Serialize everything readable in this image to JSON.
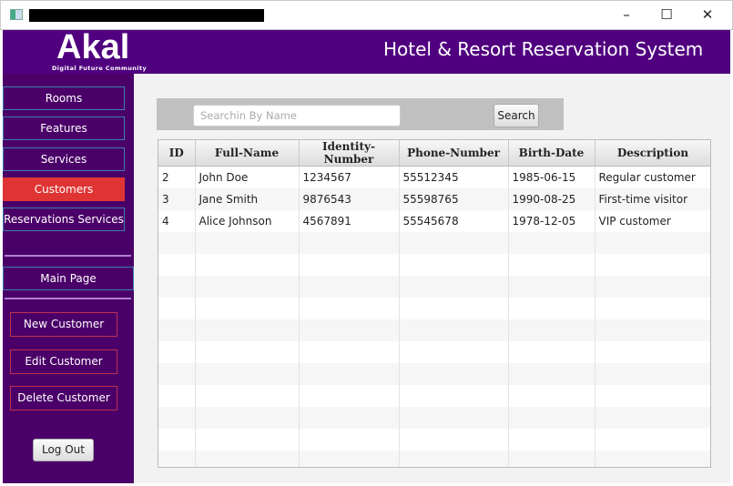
{
  "window": {
    "controls": [
      "minimize",
      "maximize",
      "close"
    ]
  },
  "header": {
    "logo": "Akal",
    "logo_sub": "Digital Future Community",
    "title": "Hotel & Resort Reservation System"
  },
  "sidebar": {
    "nav": [
      {
        "label": "Rooms"
      },
      {
        "label": "Features"
      },
      {
        "label": "Services"
      },
      {
        "label": "Customers",
        "active": true
      },
      {
        "label": "Reservations Services"
      }
    ],
    "main_page": "Main Page",
    "actions": [
      {
        "label": "New Customer"
      },
      {
        "label": "Edit Customer"
      },
      {
        "label": "Delete Customer"
      }
    ],
    "logout": "Log Out"
  },
  "search": {
    "placeholder": "Searchin By Name",
    "value": "",
    "button": "Search"
  },
  "table": {
    "columns": [
      "ID",
      "Full-Name",
      "Identity-Number",
      "Phone-Number",
      "Birth-Date",
      "Description"
    ],
    "rows": [
      [
        "2",
        "John Doe",
        "1234567",
        "55512345",
        "1985-06-15",
        "Regular customer"
      ],
      [
        "3",
        "Jane Smith",
        "9876543",
        "55598765",
        "1990-08-25",
        "First-time visitor"
      ],
      [
        "4",
        "Alice Johnson",
        "4567891",
        "55545678",
        "1978-12-05",
        "VIP customer"
      ]
    ]
  },
  "colors": {
    "header": "#50007f",
    "sidebar": "#4a0068",
    "active": "#e03434"
  }
}
